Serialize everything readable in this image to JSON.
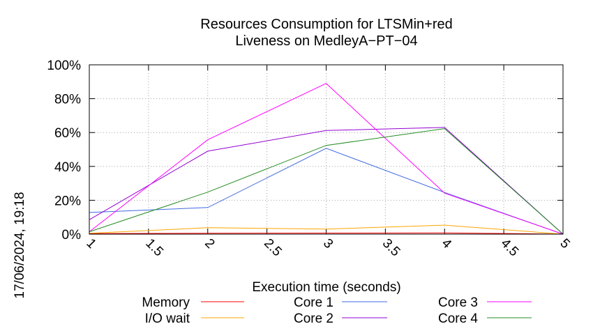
{
  "chart_data": {
    "type": "line",
    "title": [
      "Resources Consumption for LTSMin+red",
      "Liveness on MedleyA−PT−04"
    ],
    "xlabel": "Execution time (seconds)",
    "ylabel": "",
    "xlim": [
      1,
      5
    ],
    "ylim": [
      0,
      100
    ],
    "x_ticks": [
      "1",
      "1.5",
      "2",
      "2.5",
      "3",
      "3.5",
      "4",
      "4.5",
      "5"
    ],
    "y_ticks": [
      "0%",
      "20%",
      "40%",
      "60%",
      "80%",
      "100%"
    ],
    "x": [
      1,
      2,
      3,
      4,
      5
    ],
    "grid": true,
    "legend_position": "bottom",
    "series": [
      {
        "name": "Memory",
        "color": "#ff0000",
        "values": [
          0.3,
          0.5,
          0.6,
          0.7,
          0
        ]
      },
      {
        "name": "I/O wait",
        "color": "#ffa500",
        "values": [
          0.5,
          3.8,
          3,
          5.3,
          0
        ]
      },
      {
        "name": "Core 1",
        "color": "#4169e1",
        "values": [
          12.8,
          15.7,
          50.7,
          24.6,
          0
        ]
      },
      {
        "name": "Core 2",
        "color": "#9400d3",
        "values": [
          8.5,
          49,
          61.2,
          63,
          0
        ]
      },
      {
        "name": "Core 3",
        "color": "#ff00ff",
        "values": [
          1.4,
          55.7,
          89,
          24.2,
          0
        ]
      },
      {
        "name": "Core 4",
        "color": "#228b22",
        "values": [
          1.4,
          24.8,
          52.4,
          62.3,
          0
        ]
      }
    ]
  },
  "timestamp": "17/06/2024, 19:18"
}
